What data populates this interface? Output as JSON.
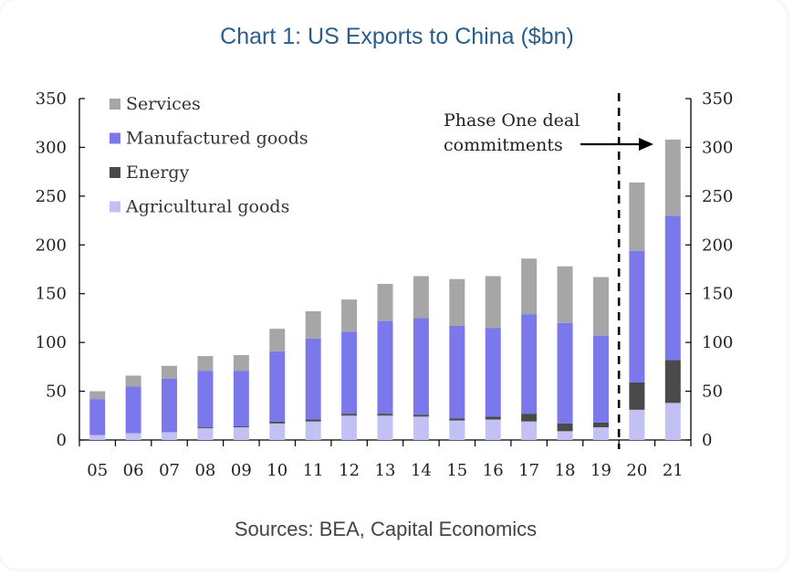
{
  "chart_data": {
    "type": "bar",
    "stacked": true,
    "title": "Chart 1: US Exports to China ($bn)",
    "source": "Sources: BEA, Capital Economics",
    "categories": [
      "05",
      "06",
      "07",
      "08",
      "09",
      "10",
      "11",
      "12",
      "13",
      "14",
      "15",
      "16",
      "17",
      "18",
      "19",
      "20",
      "21"
    ],
    "series": [
      {
        "name": "Agricultural goods",
        "color": "#c3c1f3",
        "values": [
          5,
          7,
          8,
          12,
          13,
          17,
          19,
          25,
          25,
          24,
          20,
          21,
          19,
          9,
          13,
          31,
          38
        ]
      },
      {
        "name": "Energy",
        "color": "#4a4a4a",
        "values": [
          0,
          0,
          0,
          1,
          1,
          2,
          2,
          2,
          2,
          2,
          2,
          3,
          8,
          8,
          5,
          28,
          44
        ]
      },
      {
        "name": "Manufactured goods",
        "color": "#7b78ec",
        "values": [
          37,
          48,
          55,
          58,
          57,
          72,
          83,
          84,
          95,
          99,
          95,
          91,
          102,
          103,
          89,
          135,
          148
        ]
      },
      {
        "name": "Services",
        "color": "#a6a6a6",
        "values": [
          8,
          11,
          13,
          15,
          16,
          23,
          28,
          33,
          38,
          43,
          48,
          53,
          57,
          58,
          60,
          70,
          78
        ]
      }
    ],
    "legend_order": [
      "Services",
      "Manufactured goods",
      "Energy",
      "Agricultural goods"
    ],
    "legend_position": "top-left",
    "ylim": [
      0,
      350
    ],
    "yticks": [
      0,
      50,
      100,
      150,
      200,
      250,
      300,
      350
    ],
    "secondary_y_axis": true,
    "grid": false,
    "annotation": {
      "line1": "Phase One deal",
      "line2": "commitments",
      "divider_between": [
        "19",
        "20"
      ]
    }
  }
}
